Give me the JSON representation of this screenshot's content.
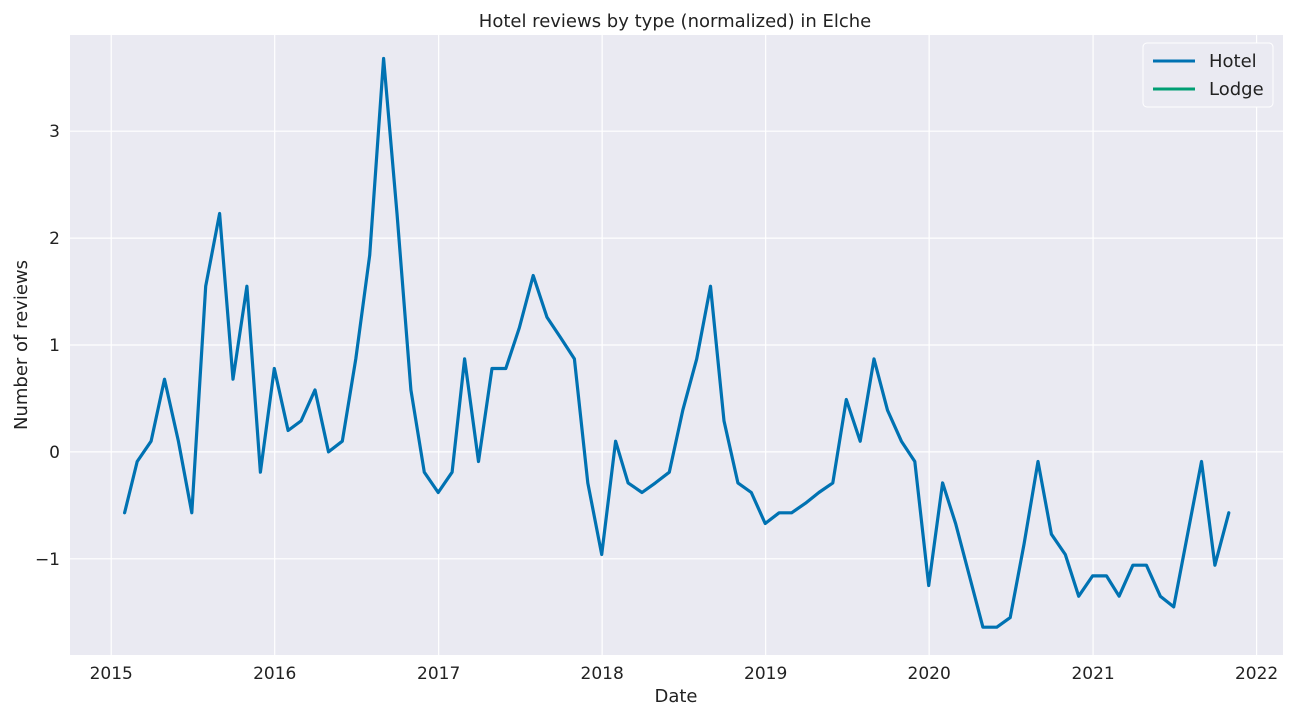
{
  "chart_data": {
    "type": "line",
    "title": "Hotel reviews by type (normalized) in Elche",
    "xlabel": "Date",
    "ylabel": "Number of reviews",
    "xlim": [
      "2014-10-01",
      "2022-03-01"
    ],
    "ylim": [
      -1.9,
      3.9
    ],
    "x_ticks": [
      "2015-01-01",
      "2016-01-01",
      "2017-01-01",
      "2018-01-01",
      "2019-01-01",
      "2020-01-01",
      "2021-01-01",
      "2022-01-01"
    ],
    "x_tick_labels": [
      "2015",
      "2016",
      "2017",
      "2018",
      "2019",
      "2020",
      "2021",
      "2022"
    ],
    "y_ticks": [
      -1,
      0,
      1,
      2,
      3
    ],
    "y_tick_labels": [
      "−1",
      "0",
      "1",
      "2",
      "3"
    ],
    "grid": true,
    "background": "#eaeaf2",
    "legend_position": "top-right",
    "series": [
      {
        "name": "Hotel",
        "color": "#0072b2",
        "points": [
          [
            "2015-01-31",
            -0.57
          ],
          [
            "2015-02-28",
            -0.09
          ],
          [
            "2015-03-31",
            0.1
          ],
          [
            "2015-04-30",
            0.68
          ],
          [
            "2015-05-31",
            0.1
          ],
          [
            "2015-06-30",
            -0.57
          ],
          [
            "2015-07-31",
            1.55
          ],
          [
            "2015-08-31",
            2.23
          ],
          [
            "2015-09-30",
            0.68
          ],
          [
            "2015-10-31",
            1.55
          ],
          [
            "2015-11-30",
            -0.19
          ],
          [
            "2015-12-31",
            0.78
          ],
          [
            "2016-01-31",
            0.2
          ],
          [
            "2016-02-29",
            0.29
          ],
          [
            "2016-03-31",
            0.58
          ],
          [
            "2016-04-30",
            0.0
          ],
          [
            "2016-05-31",
            0.1
          ],
          [
            "2016-06-30",
            0.87
          ],
          [
            "2016-07-31",
            1.84
          ],
          [
            "2016-08-31",
            3.68
          ],
          [
            "2016-09-30",
            2.23
          ],
          [
            "2016-10-31",
            0.58
          ],
          [
            "2016-11-30",
            -0.19
          ],
          [
            "2016-12-31",
            -0.38
          ],
          [
            "2017-01-31",
            -0.19
          ],
          [
            "2017-02-28",
            0.87
          ],
          [
            "2017-03-31",
            -0.09
          ],
          [
            "2017-04-30",
            0.78
          ],
          [
            "2017-05-31",
            0.78
          ],
          [
            "2017-06-30",
            1.16
          ],
          [
            "2017-07-31",
            1.65
          ],
          [
            "2017-08-31",
            1.26
          ],
          [
            "2017-09-30",
            1.07
          ],
          [
            "2017-10-31",
            0.87
          ],
          [
            "2017-11-30",
            -0.29
          ],
          [
            "2017-12-31",
            -0.96
          ],
          [
            "2018-01-31",
            0.1
          ],
          [
            "2018-02-28",
            -0.29
          ],
          [
            "2018-03-31",
            -0.38
          ],
          [
            "2018-04-30",
            -0.29
          ],
          [
            "2018-05-31",
            -0.19
          ],
          [
            "2018-06-30",
            0.39
          ],
          [
            "2018-07-31",
            0.87
          ],
          [
            "2018-08-31",
            1.55
          ],
          [
            "2018-09-30",
            0.29
          ],
          [
            "2018-10-31",
            -0.29
          ],
          [
            "2018-11-30",
            -0.38
          ],
          [
            "2018-12-31",
            -0.67
          ],
          [
            "2019-01-31",
            -0.57
          ],
          [
            "2019-02-28",
            -0.57
          ],
          [
            "2019-03-31",
            -0.48
          ],
          [
            "2019-04-30",
            -0.38
          ],
          [
            "2019-05-31",
            -0.29
          ],
          [
            "2019-06-30",
            0.49
          ],
          [
            "2019-07-31",
            0.1
          ],
          [
            "2019-08-31",
            0.87
          ],
          [
            "2019-09-30",
            0.39
          ],
          [
            "2019-10-31",
            0.1
          ],
          [
            "2019-11-30",
            -0.09
          ],
          [
            "2019-12-31",
            -1.25
          ],
          [
            "2020-01-31",
            -0.29
          ],
          [
            "2020-02-29",
            -0.67
          ],
          [
            "2020-03-31",
            -1.16
          ],
          [
            "2020-04-30",
            -1.64
          ],
          [
            "2020-05-31",
            -1.64
          ],
          [
            "2020-06-30",
            -1.55
          ],
          [
            "2020-07-31",
            -0.86
          ],
          [
            "2020-08-31",
            -0.09
          ],
          [
            "2020-09-30",
            -0.77
          ],
          [
            "2020-10-31",
            -0.96
          ],
          [
            "2020-11-30",
            -1.35
          ],
          [
            "2020-12-31",
            -1.16
          ],
          [
            "2021-01-31",
            -1.16
          ],
          [
            "2021-02-28",
            -1.35
          ],
          [
            "2021-03-31",
            -1.06
          ],
          [
            "2021-04-30",
            -1.06
          ],
          [
            "2021-05-31",
            -1.35
          ],
          [
            "2021-06-30",
            -1.45
          ],
          [
            "2021-07-31",
            -0.77
          ],
          [
            "2021-08-31",
            -0.09
          ],
          [
            "2021-09-30",
            -1.06
          ],
          [
            "2021-10-31",
            -0.57
          ]
        ]
      },
      {
        "name": "Lodge",
        "color": "#009e73",
        "points": []
      }
    ]
  }
}
